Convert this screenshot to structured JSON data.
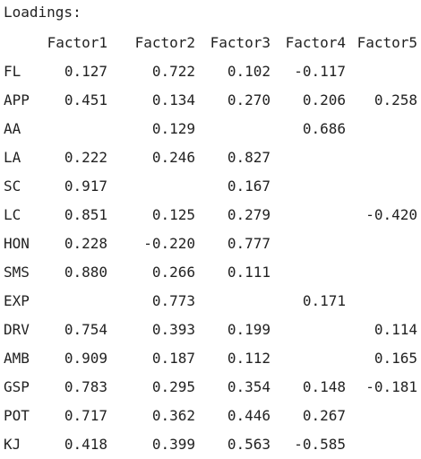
{
  "title": "Loadings:",
  "columns": [
    "Factor1",
    "Factor2",
    "Factor3",
    "Factor4",
    "Factor5"
  ],
  "rows": [
    {
      "label": "FL",
      "values": [
        "0.127",
        "0.722",
        "0.102",
        "-0.117",
        ""
      ]
    },
    {
      "label": "APP",
      "values": [
        "0.451",
        "0.134",
        "0.270",
        "0.206",
        "0.258"
      ]
    },
    {
      "label": "AA",
      "values": [
        "",
        "0.129",
        "",
        "0.686",
        ""
      ]
    },
    {
      "label": "LA",
      "values": [
        "0.222",
        "0.246",
        "0.827",
        "",
        ""
      ]
    },
    {
      "label": "SC",
      "values": [
        "0.917",
        "",
        "0.167",
        "",
        ""
      ]
    },
    {
      "label": "LC",
      "values": [
        "0.851",
        "0.125",
        "0.279",
        "",
        "-0.420"
      ]
    },
    {
      "label": "HON",
      "values": [
        "0.228",
        "-0.220",
        "0.777",
        "",
        ""
      ]
    },
    {
      "label": "SMS",
      "values": [
        "0.880",
        "0.266",
        "0.111",
        "",
        ""
      ]
    },
    {
      "label": "EXP",
      "values": [
        "",
        "0.773",
        "",
        "0.171",
        ""
      ]
    },
    {
      "label": "DRV",
      "values": [
        "0.754",
        "0.393",
        "0.199",
        "",
        "0.114"
      ]
    },
    {
      "label": "AMB",
      "values": [
        "0.909",
        "0.187",
        "0.112",
        "",
        "0.165"
      ]
    },
    {
      "label": "GSP",
      "values": [
        "0.783",
        "0.295",
        "0.354",
        "0.148",
        "-0.181"
      ]
    },
    {
      "label": "POT",
      "values": [
        "0.717",
        "0.362",
        "0.446",
        "0.267",
        ""
      ]
    },
    {
      "label": "KJ",
      "values": [
        "0.418",
        "0.399",
        "0.563",
        "-0.585",
        ""
      ]
    }
  ]
}
